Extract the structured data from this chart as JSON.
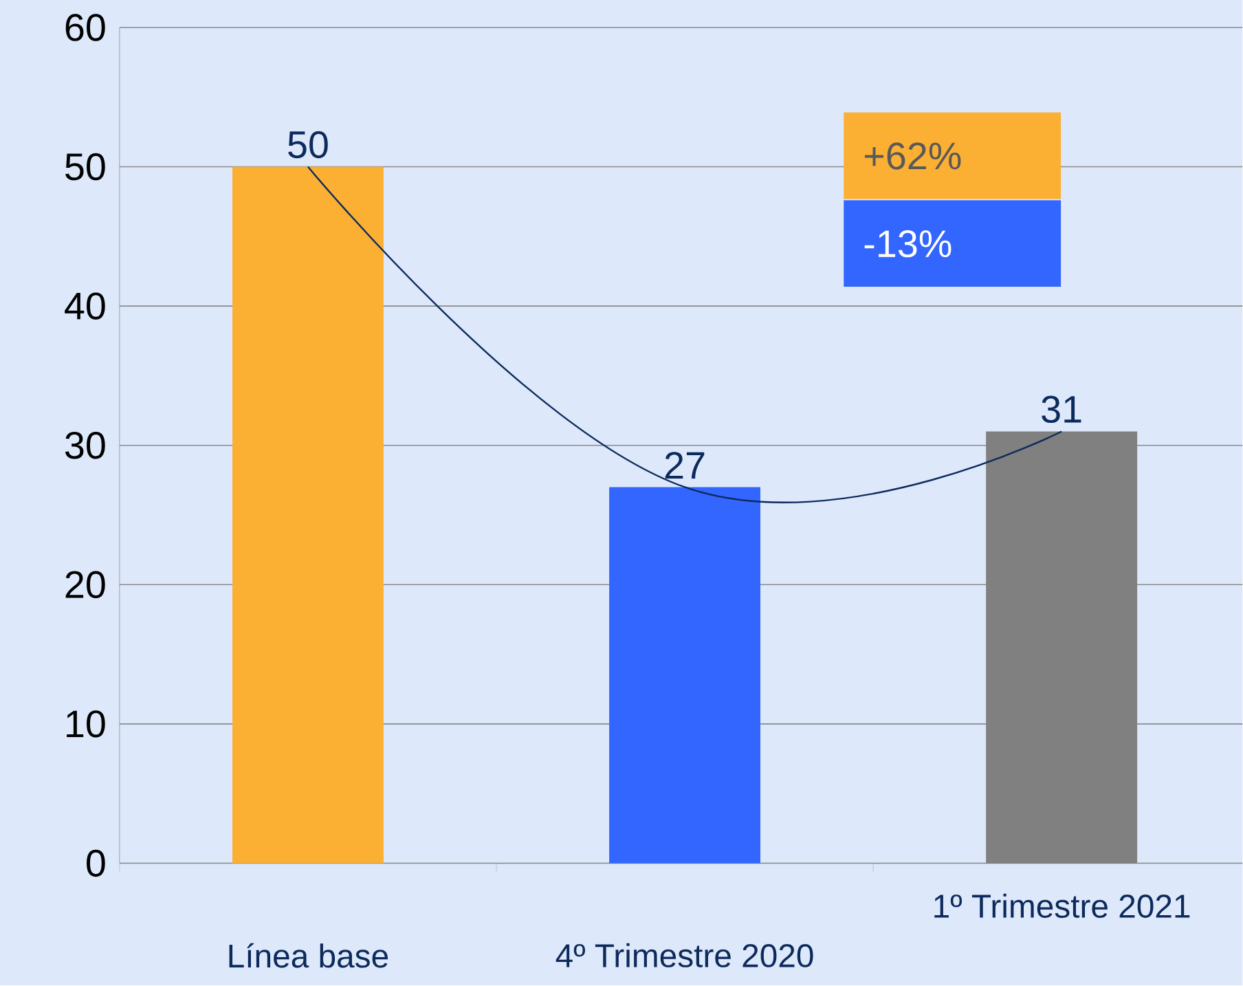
{
  "chart_data": {
    "type": "bar",
    "categories": [
      "Línea base",
      "4º Trimestre 2020",
      "1º Trimestre 2021"
    ],
    "values": [
      50,
      27,
      31
    ],
    "colors": [
      "#fbb034",
      "#3366ff",
      "#808080"
    ],
    "series": [
      {
        "type": "line",
        "color": "#0d2a5c",
        "values": [
          50,
          27,
          31
        ]
      }
    ],
    "value_labels": [
      "50",
      "27",
      "31"
    ],
    "ylim": [
      0,
      60
    ],
    "yticks": [
      0,
      10,
      20,
      30,
      40,
      50,
      60
    ],
    "grid": "y",
    "annotations": [
      "+62%",
      "-13%"
    ]
  }
}
